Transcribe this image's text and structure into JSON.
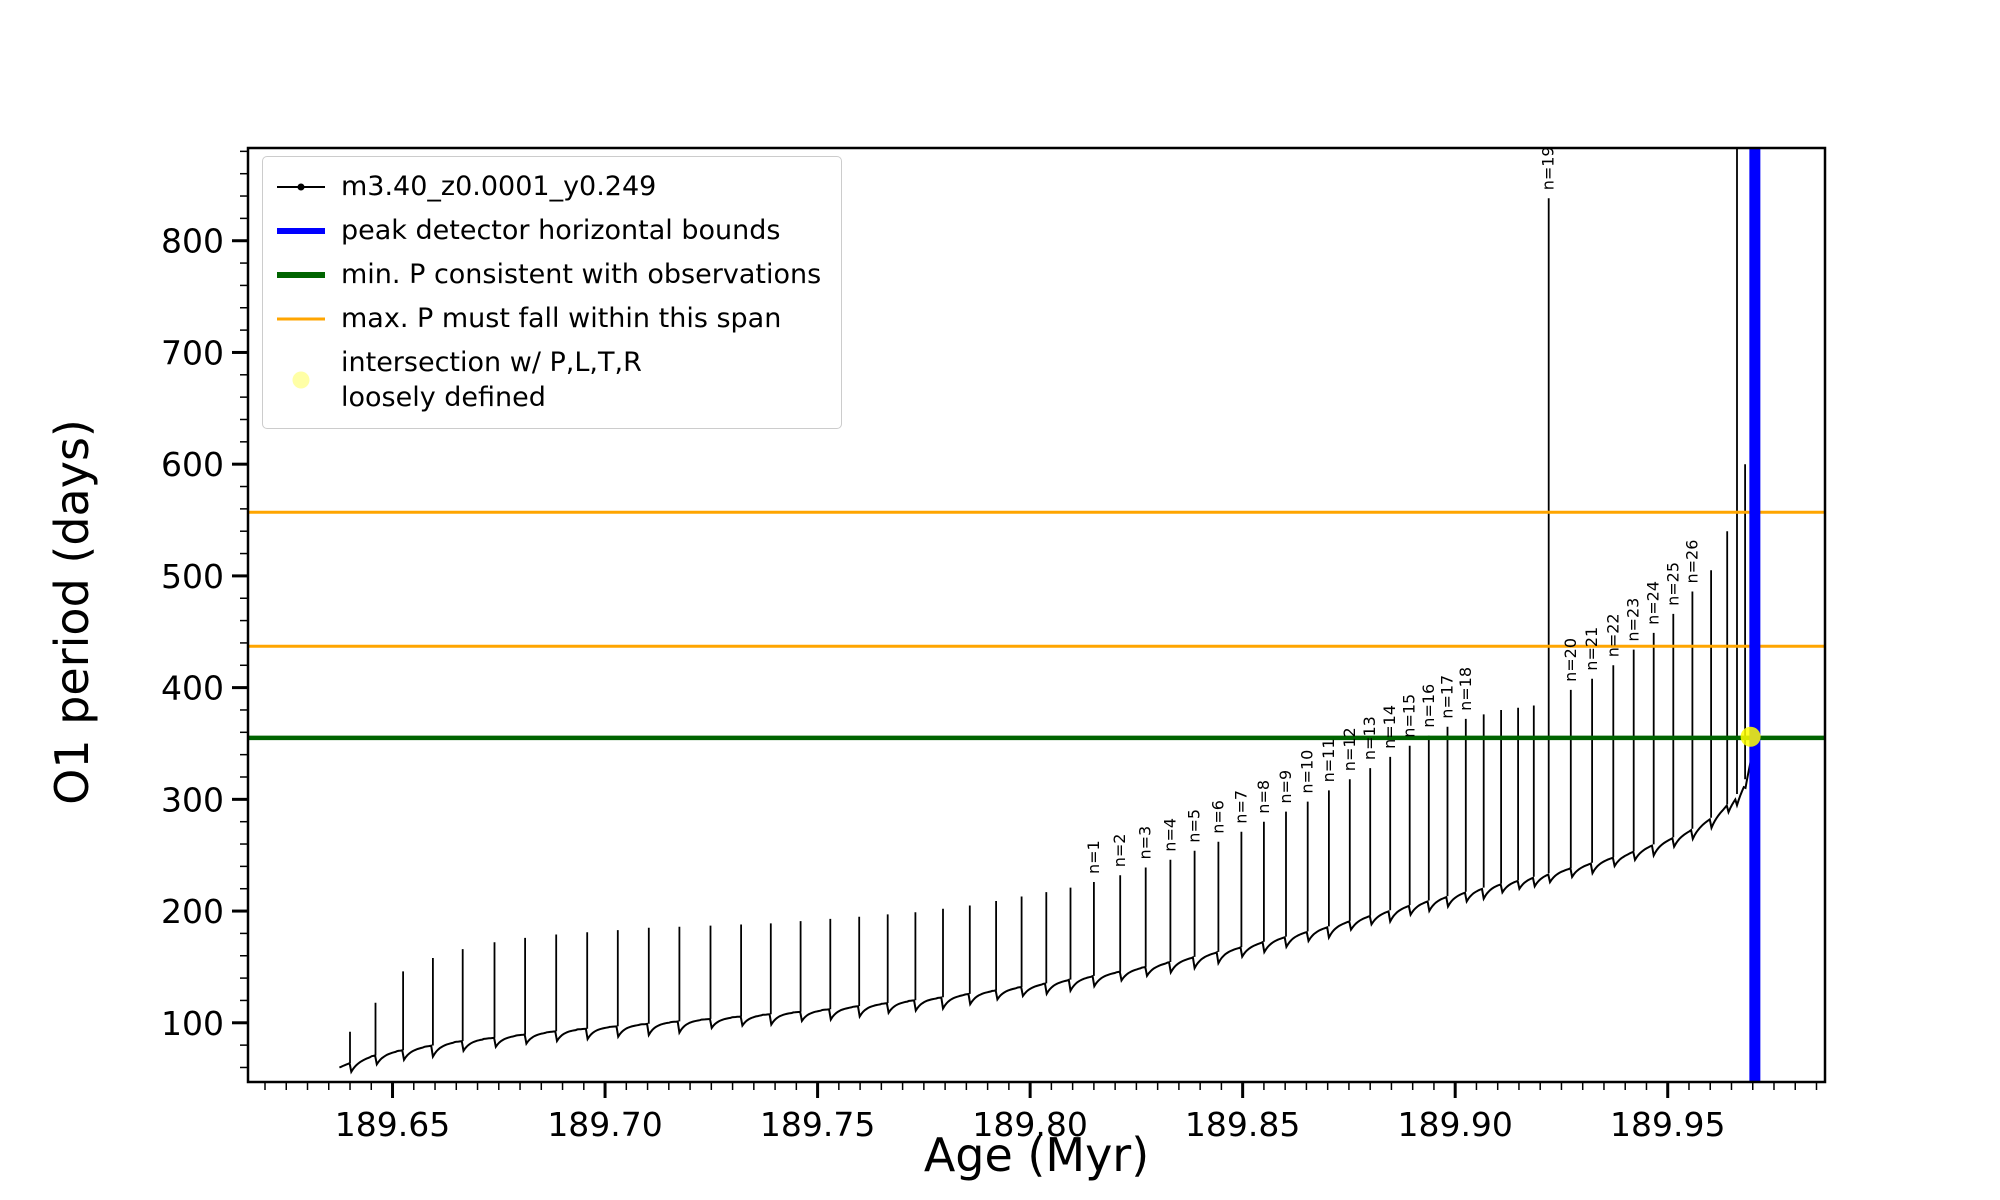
{
  "chart_data": {
    "type": "line",
    "title": "",
    "xlabel": "Age (Myr)",
    "ylabel": "O1 period (days)",
    "xlim": [
      189.616,
      189.987
    ],
    "ylim": [
      47,
      883
    ],
    "grid": false,
    "legend_position": "upper left",
    "xticks": {
      "values": [
        189.65,
        189.7,
        189.75,
        189.8,
        189.85,
        189.9,
        189.95
      ],
      "labels": [
        "189.65",
        "189.70",
        "189.75",
        "189.80",
        "189.85",
        "189.90",
        "189.95"
      ],
      "minor_step": 0.005
    },
    "yticks": {
      "values": [
        100,
        200,
        300,
        400,
        500,
        600,
        700,
        800
      ],
      "labels": [
        "100",
        "200",
        "300",
        "400",
        "500",
        "600",
        "700",
        "800"
      ],
      "minor_step": 20
    },
    "series": {
      "name": "m3.40_z0.0001_y0.249",
      "color": "#000000",
      "baseline": [
        [
          189.6375,
          60
        ],
        [
          189.64,
          64
        ],
        [
          189.645,
          70
        ],
        [
          189.65,
          74
        ],
        [
          189.655,
          77
        ],
        [
          189.66,
          80
        ],
        [
          189.665,
          83
        ],
        [
          189.67,
          85
        ],
        [
          189.675,
          87
        ],
        [
          189.68,
          89
        ],
        [
          189.69,
          93
        ],
        [
          189.7,
          96
        ],
        [
          189.71,
          99
        ],
        [
          189.72,
          102
        ],
        [
          189.73,
          105
        ],
        [
          189.74,
          108
        ],
        [
          189.75,
          111
        ],
        [
          189.76,
          115
        ],
        [
          189.77,
          119
        ],
        [
          189.78,
          123
        ],
        [
          189.79,
          128
        ],
        [
          189.8,
          133
        ],
        [
          189.81,
          139
        ],
        [
          189.82,
          145
        ],
        [
          189.83,
          152
        ],
        [
          189.84,
          160
        ],
        [
          189.85,
          168
        ],
        [
          189.86,
          177
        ],
        [
          189.87,
          186
        ],
        [
          189.88,
          196
        ],
        [
          189.89,
          206
        ],
        [
          189.9,
          215
        ],
        [
          189.91,
          224
        ],
        [
          189.92,
          232
        ],
        [
          189.93,
          241
        ],
        [
          189.94,
          251
        ],
        [
          189.95,
          264
        ],
        [
          189.955,
          272
        ],
        [
          189.96,
          283
        ],
        [
          189.963,
          292
        ],
        [
          189.966,
          303
        ],
        [
          189.968,
          315
        ],
        [
          189.9695,
          338
        ],
        [
          189.9702,
          358
        ],
        [
          189.9708,
          345
        ],
        [
          189.9713,
          315
        ],
        [
          189.9718,
          300
        ]
      ],
      "spikes": [
        {
          "x": 189.64,
          "peak": 92
        },
        {
          "x": 189.646,
          "peak": 118
        },
        {
          "x": 189.6525,
          "peak": 146
        },
        {
          "x": 189.6595,
          "peak": 158
        },
        {
          "x": 189.6665,
          "peak": 166
        },
        {
          "x": 189.674,
          "peak": 172
        },
        {
          "x": 189.6812,
          "peak": 176
        },
        {
          "x": 189.6885,
          "peak": 179
        },
        {
          "x": 189.6958,
          "peak": 181
        },
        {
          "x": 189.703,
          "peak": 183
        },
        {
          "x": 189.7103,
          "peak": 185
        },
        {
          "x": 189.7175,
          "peak": 186
        },
        {
          "x": 189.7248,
          "peak": 187
        },
        {
          "x": 189.732,
          "peak": 188
        },
        {
          "x": 189.739,
          "peak": 189
        },
        {
          "x": 189.746,
          "peak": 191
        },
        {
          "x": 189.753,
          "peak": 193
        },
        {
          "x": 189.7598,
          "peak": 195
        },
        {
          "x": 189.7665,
          "peak": 197
        },
        {
          "x": 189.773,
          "peak": 199
        },
        {
          "x": 189.7795,
          "peak": 202
        },
        {
          "x": 189.7858,
          "peak": 205
        },
        {
          "x": 189.792,
          "peak": 209
        },
        {
          "x": 189.798,
          "peak": 213
        },
        {
          "x": 189.8038,
          "peak": 217
        },
        {
          "x": 189.8095,
          "peak": 221
        },
        {
          "x": 189.815,
          "peak": 226,
          "label": "n=1"
        },
        {
          "x": 189.8212,
          "peak": 232,
          "label": "n=2"
        },
        {
          "x": 189.8272,
          "peak": 239,
          "label": "n=3"
        },
        {
          "x": 189.833,
          "peak": 246,
          "label": "n=4"
        },
        {
          "x": 189.8387,
          "peak": 254,
          "label": "n=5"
        },
        {
          "x": 189.8443,
          "peak": 262,
          "label": "n=6"
        },
        {
          "x": 189.8497,
          "peak": 271,
          "label": "n=7"
        },
        {
          "x": 189.855,
          "peak": 280,
          "label": "n=8"
        },
        {
          "x": 189.8602,
          "peak": 289,
          "label": "n=9"
        },
        {
          "x": 189.8653,
          "peak": 298,
          "label": "n=10"
        },
        {
          "x": 189.8703,
          "peak": 308,
          "label": "n=11"
        },
        {
          "x": 189.8752,
          "peak": 318,
          "label": "n=12"
        },
        {
          "x": 189.88,
          "peak": 328,
          "label": "n=13"
        },
        {
          "x": 189.8847,
          "peak": 338,
          "label": "n=14"
        },
        {
          "x": 189.8893,
          "peak": 348,
          "label": "n=15"
        },
        {
          "x": 189.8938,
          "peak": 357,
          "label": "n=16"
        },
        {
          "x": 189.8982,
          "peak": 365,
          "label": "n=17"
        },
        {
          "x": 189.9025,
          "peak": 372,
          "label": "n=18"
        },
        {
          "x": 189.9067,
          "peak": 376
        },
        {
          "x": 189.9108,
          "peak": 380
        },
        {
          "x": 189.9148,
          "peak": 382
        },
        {
          "x": 189.9185,
          "peak": 384
        },
        {
          "x": 189.922,
          "peak": 838,
          "label": "n=19"
        },
        {
          "x": 189.9272,
          "peak": 398,
          "label": "n=20"
        },
        {
          "x": 189.9322,
          "peak": 408,
          "label": "n=21"
        },
        {
          "x": 189.9372,
          "peak": 420,
          "label": "n=22"
        },
        {
          "x": 189.942,
          "peak": 434,
          "label": "n=23"
        },
        {
          "x": 189.9467,
          "peak": 449,
          "label": "n=24"
        },
        {
          "x": 189.9513,
          "peak": 466,
          "label": "n=25"
        },
        {
          "x": 189.9558,
          "peak": 486,
          "label": "n=26"
        },
        {
          "x": 189.9602,
          "peak": 505
        },
        {
          "x": 189.964,
          "peak": 540
        },
        {
          "x": 189.9663,
          "peak": 915
        },
        {
          "x": 189.9682,
          "peak": 600
        }
      ]
    },
    "hlines": [
      {
        "y": 557,
        "color": "#ffa500",
        "width": 3,
        "name": "max-P-span-upper-line"
      },
      {
        "y": 437,
        "color": "#ffa500",
        "width": 3,
        "name": "max-P-span-lower-line"
      },
      {
        "y": 355,
        "color": "#006400",
        "width": 4.5,
        "name": "min-P-line"
      }
    ],
    "vlines": [
      {
        "x": 189.9705,
        "color": "#0000ff",
        "width": 11,
        "name": "peak-detector-bounds-line"
      }
    ],
    "points": [
      {
        "x": 189.9695,
        "y": 356,
        "color": "#ffff00",
        "radius": 10,
        "name": "intersection-point"
      }
    ],
    "legend": [
      {
        "label": "m3.40_z0.0001_y0.249",
        "marker": "line-dot",
        "color": "#000000"
      },
      {
        "label": "peak detector horizontal bounds",
        "marker": "thick-line",
        "color": "#0000ff"
      },
      {
        "label": "min. P consistent with observations",
        "marker": "thick-line",
        "color": "#006400"
      },
      {
        "label": "max. P must fall within this span",
        "marker": "line",
        "color": "#ffa500"
      },
      {
        "label": "intersection w/ P,L,T,R\nloosely defined",
        "marker": "dot",
        "color": "#ffff00"
      }
    ]
  }
}
